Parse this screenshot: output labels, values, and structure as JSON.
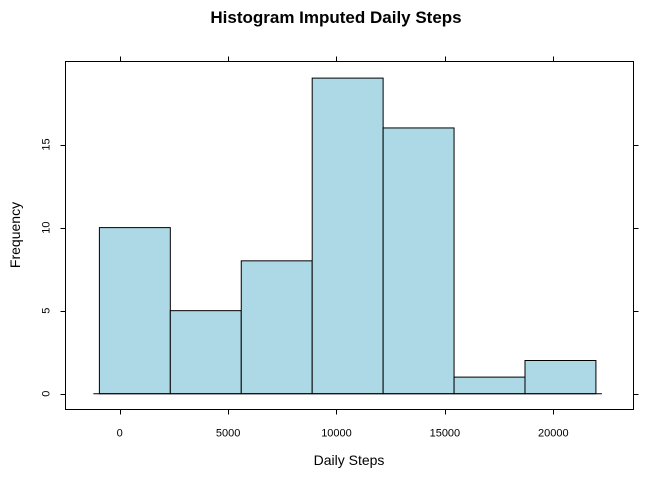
{
  "chart_data": {
    "type": "bar",
    "title": "Histogram Imputed Daily Steps",
    "xlabel": "Daily Steps",
    "ylabel": "Frequency",
    "bins": [
      {
        "x0": -937,
        "x1": 2335,
        "count": 10
      },
      {
        "x0": 2335,
        "x1": 5607,
        "count": 5
      },
      {
        "x0": 5607,
        "x1": 8879,
        "count": 8
      },
      {
        "x0": 8879,
        "x1": 12151,
        "count": 19
      },
      {
        "x0": 12151,
        "x1": 15423,
        "count": 16
      },
      {
        "x0": 15423,
        "x1": 18695,
        "count": 1
      },
      {
        "x0": 18695,
        "x1": 21967,
        "count": 2
      }
    ],
    "xlim": [
      -2500,
      23700
    ],
    "ylim": [
      -0.95,
      20.0
    ],
    "xticks": [
      0,
      5000,
      10000,
      15000,
      20000
    ],
    "xtick_labels": [
      "0",
      "5000",
      "10000",
      "15000",
      "20000"
    ],
    "yticks": [
      0,
      5,
      10,
      15
    ],
    "ytick_labels": [
      "0",
      "5",
      "10",
      "15"
    ],
    "grid": false
  }
}
